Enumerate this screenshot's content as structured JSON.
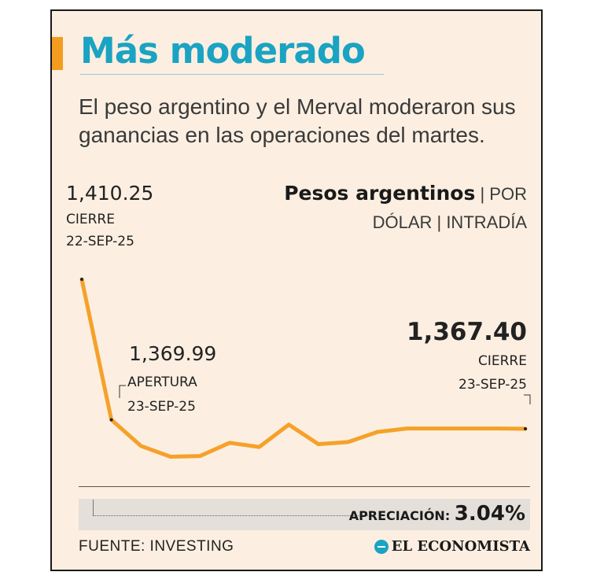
{
  "header": {
    "title": "Más moderado",
    "subtitle": "El peso argentino y el Merval moderaron sus ganancias en las operaciones del martes."
  },
  "chart_data": {
    "type": "line",
    "title": "Pesos argentinos",
    "subtitle": "| POR DÓLAR | INTRADÍA",
    "series": [
      {
        "values": [
          1410.25,
          1369.99,
          1362.5,
          1359.4,
          1359.6,
          1363.4,
          1362.2,
          1368.6,
          1363.0,
          1363.6,
          1366.5,
          1367.5,
          1367.5,
          1367.5,
          1367.5,
          1367.4
        ]
      }
    ],
    "ylim": [
      1355,
      1415
    ],
    "annotations": [
      {
        "value": "1,410.25",
        "label": "CIERRE",
        "date": "22-SEP-25"
      },
      {
        "value": "1,369.99",
        "label": "APERTURA",
        "date": "23-SEP-25"
      },
      {
        "value": "1,367.40",
        "label": "CIERRE",
        "date": "23-SEP-25"
      }
    ]
  },
  "footer": {
    "appreciation_label": "APRECIACIÓN:",
    "appreciation_value": "3.04%",
    "source": "FUENTE: INVESTING",
    "brand": "EL ECONOMISTA"
  },
  "colors": {
    "accent": "#f39c1f",
    "title": "#1aa3c2",
    "line": "#f5a12a",
    "background": "#fcefe1"
  },
  "icons": {
    "brand": "el-economista-logo-icon"
  }
}
